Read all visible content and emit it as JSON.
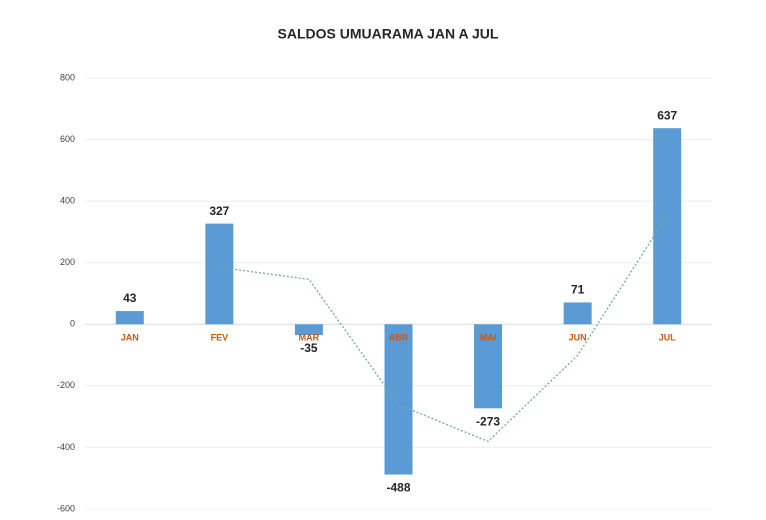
{
  "chart_data": {
    "type": "bar",
    "title": "SALDOS UMUARAMA JAN A JUL",
    "categories": [
      "JAN",
      "FEV",
      "MAR",
      "ABR",
      "MAI",
      "JUN",
      "JUL"
    ],
    "values": [
      43,
      327,
      -35,
      -488,
      -273,
      71,
      637
    ],
    "color": "#5b9bd5",
    "category_color": "#c55a11",
    "trendline": {
      "values": [
        null,
        185,
        146,
        -261.5,
        -380.5,
        -101,
        354
      ],
      "color": "#70ad8f"
    },
    "ylim": [
      -600,
      800
    ],
    "yticks": [
      -600,
      -400,
      -200,
      0,
      200,
      400,
      600,
      800
    ],
    "grid": true
  }
}
